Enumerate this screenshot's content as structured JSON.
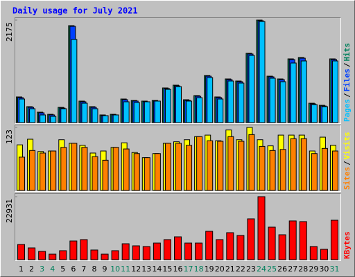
{
  "title": "Daily usage for July 2021",
  "chart_data": [
    {
      "type": "bar",
      "ylim": [
        0,
        2175
      ],
      "yticks": [
        2175
      ],
      "legend_separator": "/",
      "series": [
        {
          "name": "Hits",
          "color": "#00805c",
          "values": [
            544,
            338,
            221,
            176,
            323,
            2057,
            456,
            338,
            162,
            176,
            500,
            470,
            456,
            470,
            735,
            794,
            485,
            573,
            999,
            544,
            926,
            882,
            1470,
            2175,
            985,
            926,
            1352,
            1381,
            411,
            367,
            1352
          ]
        },
        {
          "name": "Files",
          "color": "#0040ff",
          "values": [
            529,
            323,
            206,
            162,
            308,
            2042,
            441,
            323,
            147,
            162,
            485,
            456,
            441,
            456,
            720,
            779,
            470,
            558,
            984,
            529,
            911,
            867,
            1455,
            2160,
            970,
            911,
            1337,
            1366,
            397,
            352,
            1337
          ]
        },
        {
          "name": "Pages",
          "color": "#00c0ff",
          "values": [
            500,
            294,
            162,
            132,
            294,
            1764,
            411,
            294,
            147,
            162,
            441,
            426,
            441,
            456,
            705,
            764,
            456,
            529,
            955,
            500,
            882,
            838,
            1425,
            2146,
            941,
            867,
            1264,
            1308,
            382,
            338,
            1308
          ]
        }
      ]
    },
    {
      "type": "bar",
      "ylim": [
        0,
        123
      ],
      "yticks": [
        123
      ],
      "legend_separator": "/",
      "series": [
        {
          "name": "Visits",
          "color": "#ffff00",
          "values": [
            89,
            100,
            76,
            77,
            99,
            92,
            88,
            73,
            77,
            84,
            93,
            74,
            64,
            72,
            92,
            95,
            99,
            105,
            108,
            97,
            118,
            99,
            123,
            99,
            87,
            108,
            108,
            108,
            77,
            104,
            88
          ]
        },
        {
          "name": "Sites",
          "color": "#ff8000",
          "values": [
            65,
            78,
            73,
            77,
            84,
            92,
            84,
            66,
            59,
            84,
            81,
            72,
            64,
            72,
            92,
            92,
            88,
            105,
            97,
            96,
            105,
            96,
            109,
            86,
            78,
            80,
            101,
            101,
            72,
            82,
            77
          ]
        }
      ]
    },
    {
      "type": "bar",
      "ylim": [
        0,
        22931
      ],
      "yticks": [
        22931
      ],
      "categories": [
        "1",
        "2",
        "3",
        "4",
        "5",
        "6",
        "7",
        "8",
        "9",
        "10",
        "11",
        "12",
        "13",
        "14",
        "15",
        "16",
        "17",
        "18",
        "19",
        "20",
        "21",
        "22",
        "23",
        "24",
        "25",
        "26",
        "27",
        "28",
        "29",
        "30",
        "31"
      ],
      "weekend_indices": [
        2,
        3,
        9,
        10,
        16,
        17,
        23,
        24,
        30
      ],
      "weekend_color": "#00805c",
      "series": [
        {
          "name": "KBytes",
          "color": "#ff0000",
          "values": [
            5544,
            4284,
            3024,
            2016,
            3276,
            6804,
            7308,
            3528,
            2016,
            3276,
            5796,
            5040,
            4788,
            6048,
            7308,
            8316,
            6048,
            6048,
            10332,
            7308,
            9828,
            8820,
            14868,
            22931,
            11844,
            9072,
            14112,
            13860,
            4788,
            3780,
            14364
          ]
        }
      ]
    }
  ]
}
